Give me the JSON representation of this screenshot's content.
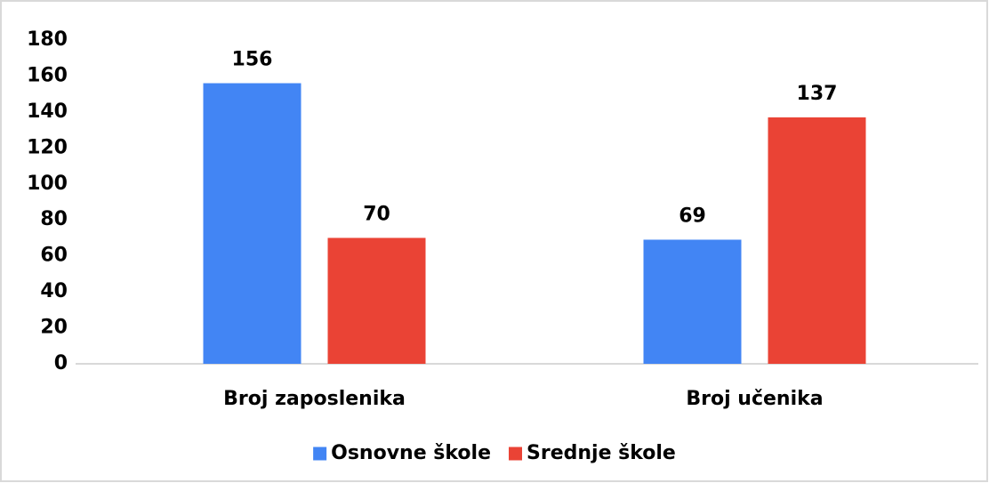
{
  "chart_data": {
    "type": "bar",
    "categories": [
      "Broj zaposlenika",
      "Broj učenika"
    ],
    "series": [
      {
        "name": "Osnovne škole",
        "color": "#4285f4",
        "values": [
          156,
          69
        ]
      },
      {
        "name": "Srednje škole",
        "color": "#ea4335",
        "values": [
          70,
          137
        ]
      }
    ],
    "ylim": [
      0,
      180
    ],
    "yticks": [
      0,
      20,
      40,
      60,
      80,
      100,
      120,
      140,
      160,
      180
    ],
    "grid": false,
    "legend": "bottom"
  }
}
